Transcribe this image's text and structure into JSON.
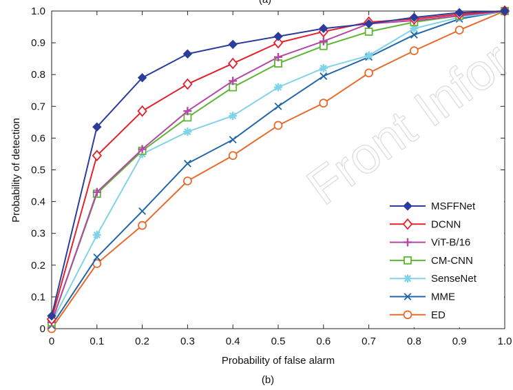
{
  "chart_data": {
    "type": "line",
    "top_caption": "(a)",
    "caption": "(b)",
    "xlabel": "Probability of false alarm",
    "ylabel": "Probability of detection",
    "xlim": [
      0,
      1
    ],
    "ylim": [
      0,
      1
    ],
    "x": [
      0,
      0.1,
      0.2,
      0.3,
      0.4,
      0.5,
      0.6,
      0.7,
      0.8,
      0.9,
      1.0
    ],
    "x_tick_labels": [
      "0",
      "0.1",
      "0.2",
      "0.3",
      "0.4",
      "0.5",
      "0.6",
      "0.7",
      "0.8",
      "0.9",
      "1.0"
    ],
    "y_tick_labels": [
      "0",
      "0.1",
      "0.2",
      "0.3",
      "0.4",
      "0.5",
      "0.6",
      "0.7",
      "0.8",
      "0.9",
      "1.0"
    ],
    "grid": false,
    "legend_position": "bottom-right",
    "watermark": "Front Infor",
    "series": [
      {
        "name": "MSFFNet",
        "color": "#2b3d9c",
        "marker": "filled-diamond",
        "values": [
          0.04,
          0.635,
          0.79,
          0.865,
          0.895,
          0.92,
          0.945,
          0.96,
          0.98,
          0.995,
          1.0
        ]
      },
      {
        "name": "DCNN",
        "color": "#e3202b",
        "marker": "open-diamond",
        "values": [
          0.03,
          0.545,
          0.685,
          0.77,
          0.835,
          0.9,
          0.935,
          0.965,
          0.975,
          0.99,
          1.0
        ]
      },
      {
        "name": "ViT-B/16",
        "color": "#b347a6",
        "marker": "plus",
        "values": [
          0.02,
          0.43,
          0.565,
          0.685,
          0.78,
          0.855,
          0.905,
          0.96,
          0.97,
          0.985,
          1.0
        ]
      },
      {
        "name": "CM-CNN",
        "color": "#5cb534",
        "marker": "square",
        "values": [
          0.02,
          0.425,
          0.56,
          0.665,
          0.76,
          0.835,
          0.89,
          0.935,
          0.965,
          0.985,
          1.0
        ]
      },
      {
        "name": "SenseNet",
        "color": "#80d3e8",
        "marker": "star",
        "values": [
          0.02,
          0.295,
          0.55,
          0.62,
          0.67,
          0.76,
          0.82,
          0.86,
          0.945,
          0.98,
          1.0
        ]
      },
      {
        "name": "MME",
        "color": "#2065a8",
        "marker": "x",
        "values": [
          0.01,
          0.225,
          0.37,
          0.52,
          0.595,
          0.7,
          0.795,
          0.855,
          0.925,
          0.975,
          1.0
        ]
      },
      {
        "name": "ED",
        "color": "#e86a2b",
        "marker": "circle",
        "values": [
          0.0,
          0.205,
          0.325,
          0.465,
          0.545,
          0.64,
          0.71,
          0.805,
          0.875,
          0.94,
          1.0
        ]
      }
    ]
  }
}
